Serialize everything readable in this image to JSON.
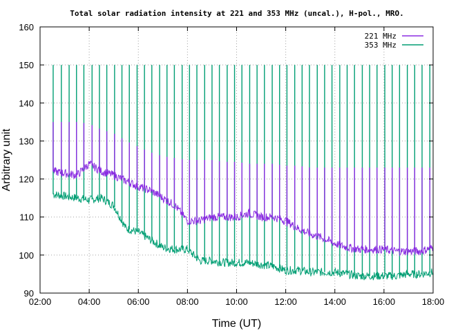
{
  "chart_data": {
    "type": "line",
    "title": "Total solar radiation intensity at 221 and 353 MHz (uncal.), H-pol., MRO.",
    "xlabel": "Time (UT)",
    "ylabel": "Arbitrary unit",
    "xlim": [
      "02:00",
      "18:00"
    ],
    "ylim": [
      90,
      160
    ],
    "x_ticks": [
      "02:00",
      "04:00",
      "06:00",
      "08:00",
      "10:00",
      "12:00",
      "14:00",
      "16:00",
      "18:00"
    ],
    "y_ticks": [
      90,
      100,
      110,
      120,
      130,
      140,
      150,
      160
    ],
    "grid": true,
    "legend_position": "top-right",
    "series": [
      {
        "name": "221 MHz",
        "color": "#8a2be2",
        "x": [
          "02:32",
          "03:00",
          "03:30",
          "04:00",
          "04:30",
          "05:00",
          "05:30",
          "06:00",
          "06:30",
          "07:00",
          "07:30",
          "08:00",
          "08:30",
          "09:00",
          "09:30",
          "10:00",
          "10:30",
          "11:00",
          "11:30",
          "12:00",
          "12:30",
          "13:00",
          "13:30",
          "14:00",
          "14:30",
          "15:00",
          "15:30",
          "16:00",
          "16:30",
          "17:00",
          "17:30",
          "18:00"
        ],
        "values": [
          122,
          121.5,
          121,
          124,
          122,
          121,
          119.5,
          118,
          117,
          115,
          113,
          109,
          109,
          110,
          110,
          110,
          111,
          110,
          110,
          109,
          107,
          105.5,
          104.5,
          103,
          102,
          101.5,
          101.5,
          101.5,
          101,
          101,
          101,
          102
        ],
        "peak_level": [
          135,
          135,
          135,
          134.5,
          133,
          132,
          130,
          128.5,
          127,
          126,
          125.5,
          125,
          125,
          125,
          124.5,
          124.5,
          124,
          124,
          124,
          123.5,
          123.5,
          123,
          123,
          123,
          123,
          123,
          123,
          123,
          123,
          123,
          123,
          123
        ]
      },
      {
        "name": "353 MHz",
        "color": "#009e73",
        "x": [
          "02:32",
          "03:00",
          "03:30",
          "04:00",
          "04:30",
          "05:00",
          "05:30",
          "06:00",
          "06:30",
          "07:00",
          "07:30",
          "08:00",
          "08:30",
          "09:00",
          "09:30",
          "10:00",
          "10:30",
          "11:00",
          "11:30",
          "12:00",
          "12:30",
          "13:00",
          "13:30",
          "14:00",
          "14:30",
          "15:00",
          "15:30",
          "16:00",
          "16:30",
          "17:00",
          "17:30",
          "18:00"
        ],
        "values": [
          116,
          115.5,
          115,
          114.5,
          115,
          113,
          107,
          106,
          104,
          102,
          101.5,
          101.5,
          98.5,
          98.5,
          98,
          98,
          98,
          97.5,
          97,
          96,
          96,
          95.5,
          95.5,
          95.5,
          95,
          94.5,
          94.5,
          94.5,
          94.5,
          95,
          95,
          95.5
        ],
        "peak_level": 150
      }
    ],
    "calibration_spikes": [
      "02:32",
      "02:52",
      "03:11",
      "03:29",
      "03:47",
      "04:07",
      "04:25",
      "04:43",
      "05:02",
      "05:20",
      "05:38",
      "05:57",
      "06:15",
      "06:33",
      "06:52",
      "07:10",
      "07:28",
      "07:47",
      "08:05",
      "08:23",
      "08:42",
      "09:00",
      "09:18",
      "09:37",
      "09:55",
      "10:13",
      "10:32",
      "10:50",
      "11:08",
      "11:27",
      "11:45",
      "12:03",
      "12:22",
      "12:40",
      "12:58",
      "13:17",
      "13:35",
      "13:53",
      "14:12",
      "14:30",
      "14:48",
      "15:07",
      "15:25",
      "15:43",
      "16:02",
      "16:20",
      "16:38",
      "16:57",
      "17:15",
      "17:33",
      "17:52"
    ]
  }
}
